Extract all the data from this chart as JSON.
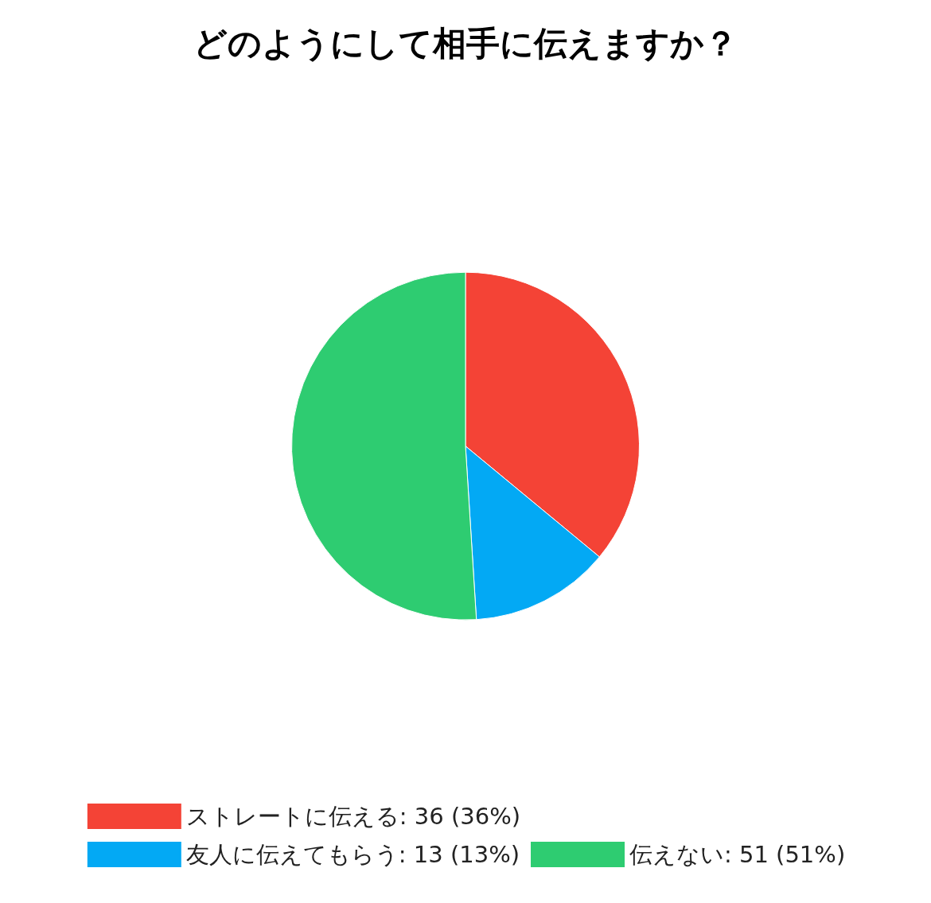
{
  "chart_data": {
    "type": "pie",
    "title": "どのようにして相手に伝えますか？",
    "categories": [
      "ストレートに伝える: 36 (36%)",
      "友人に伝えてもらう: 13 (13%)",
      "伝えない: 51 (51%)"
    ],
    "values": [
      36,
      13,
      51
    ],
    "colors": [
      "#f44336",
      "#03a9f4",
      "#2ecc71"
    ],
    "legend": "bottom"
  }
}
